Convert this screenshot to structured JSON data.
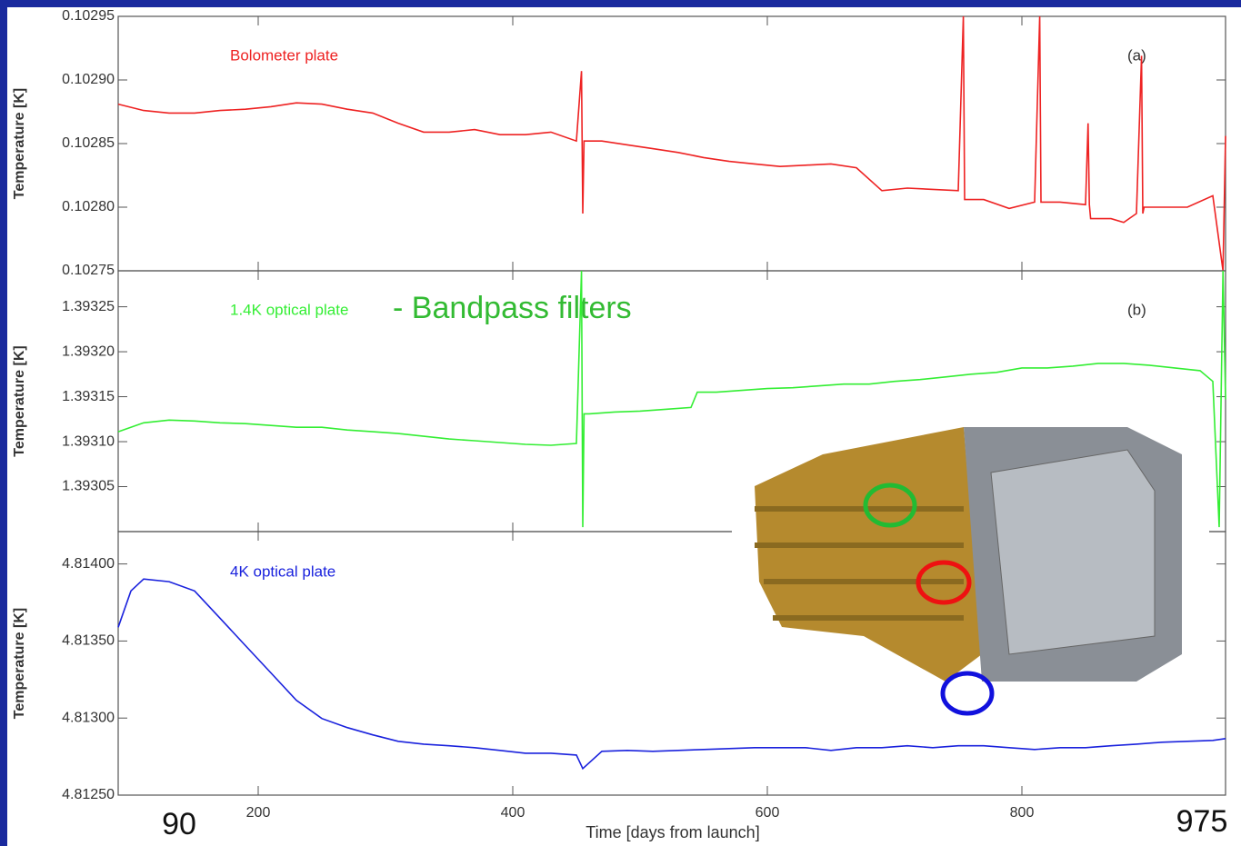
{
  "chart_data": [
    {
      "type": "line",
      "ylabel": "Temperature [K]",
      "panel_label": "(a)",
      "xlim": [
        90,
        960
      ],
      "ylim": [
        0.10275,
        0.10295
      ],
      "yticks": [
        {
          "value": 0.10275,
          "label": "0.10275"
        },
        {
          "value": 0.1028,
          "label": "0.10280"
        },
        {
          "value": 0.10285,
          "label": "0.10285"
        },
        {
          "value": 0.1029,
          "label": "0.10290"
        },
        {
          "value": 0.10295,
          "label": "0.10295"
        }
      ],
      "series": [
        {
          "name": "Bolometer plate",
          "color": "#ee2222",
          "x": [
            90,
            110,
            130,
            150,
            170,
            190,
            210,
            230,
            250,
            270,
            290,
            310,
            330,
            350,
            370,
            390,
            410,
            430,
            450,
            454,
            455,
            456,
            470,
            490,
            510,
            530,
            550,
            570,
            590,
            610,
            630,
            650,
            670,
            690,
            710,
            730,
            750,
            754,
            755,
            756,
            770,
            790,
            810,
            814,
            815,
            816,
            830,
            850,
            852,
            853,
            854,
            870,
            880,
            890,
            894,
            895,
            896,
            910,
            930,
            950,
            958,
            960
          ],
          "values": [
            0.102881,
            0.102876,
            0.102874,
            0.102874,
            0.102876,
            0.102877,
            0.102879,
            0.102882,
            0.102881,
            0.102877,
            0.102874,
            0.102866,
            0.102859,
            0.102859,
            0.102861,
            0.102857,
            0.102857,
            0.102859,
            0.102852,
            0.102907,
            0.102795,
            0.102852,
            0.102852,
            0.102849,
            0.102846,
            0.102843,
            0.102839,
            0.102836,
            0.102834,
            0.102832,
            0.102833,
            0.102834,
            0.102831,
            0.102813,
            0.102815,
            0.102814,
            0.102813,
            0.10295,
            0.102806,
            0.102806,
            0.102806,
            0.102799,
            0.102804,
            0.10295,
            0.102804,
            0.102804,
            0.102804,
            0.102802,
            0.102866,
            0.102802,
            0.102791,
            0.102791,
            0.102788,
            0.102795,
            0.102919,
            0.102795,
            0.1028,
            0.1028,
            0.1028,
            0.102809,
            0.10275,
            0.102856
          ]
        }
      ]
    },
    {
      "type": "line",
      "ylabel": "Temperature [K]",
      "panel_label": "(b)",
      "annotation": "- Bandpass filters",
      "xlim": [
        90,
        960
      ],
      "ylim": [
        1.393,
        1.39329
      ],
      "yticks": [
        {
          "value": 1.39305,
          "label": "1.39305"
        },
        {
          "value": 1.3931,
          "label": "1.39310"
        },
        {
          "value": 1.39315,
          "label": "1.39315"
        },
        {
          "value": 1.3932,
          "label": "1.39320"
        },
        {
          "value": 1.39325,
          "label": "1.39325"
        }
      ],
      "series": [
        {
          "name": "1.4K optical plate",
          "color": "#33ee33",
          "x": [
            90,
            110,
            130,
            150,
            170,
            190,
            210,
            230,
            250,
            270,
            290,
            310,
            330,
            350,
            370,
            390,
            410,
            430,
            450,
            454,
            455,
            456,
            460,
            480,
            500,
            520,
            540,
            545,
            560,
            580,
            600,
            620,
            640,
            660,
            680,
            700,
            720,
            740,
            760,
            780,
            800,
            820,
            840,
            860,
            880,
            900,
            920,
            940,
            950,
            955,
            958,
            960
          ],
          "values": [
            1.393111,
            1.393121,
            1.393124,
            1.393123,
            1.393121,
            1.39312,
            1.393118,
            1.393116,
            1.393116,
            1.393113,
            1.393111,
            1.393109,
            1.393106,
            1.393103,
            1.393101,
            1.393099,
            1.393097,
            1.393096,
            1.393098,
            1.39329,
            1.393005,
            1.393131,
            1.393131,
            1.393133,
            1.393134,
            1.393136,
            1.393138,
            1.393155,
            1.393155,
            1.393157,
            1.393159,
            1.39316,
            1.393162,
            1.393164,
            1.393164,
            1.393167,
            1.393169,
            1.393172,
            1.393175,
            1.393177,
            1.393182,
            1.393182,
            1.393184,
            1.393187,
            1.393187,
            1.393185,
            1.393182,
            1.393179,
            1.393167,
            1.393005,
            1.39329,
            1.393147
          ]
        }
      ]
    },
    {
      "type": "line",
      "ylabel": "Temperature [K]",
      "xlabel": "Time [days from launch]",
      "annotations": [
        "90",
        "975"
      ],
      "xlim": [
        90,
        960
      ],
      "ylim": [
        4.8125,
        4.81421
      ],
      "xticks": [
        200,
        400,
        600,
        800
      ],
      "yticks": [
        {
          "value": 4.8125,
          "label": "4.81250"
        },
        {
          "value": 4.813,
          "label": "4.81300"
        },
        {
          "value": 4.8135,
          "label": "4.81350"
        },
        {
          "value": 4.814,
          "label": "4.81400"
        }
      ],
      "series": [
        {
          "name": "4K optical plate",
          "color": "#1a22dd",
          "x": [
            90,
            100,
            110,
            130,
            150,
            170,
            190,
            210,
            230,
            250,
            270,
            290,
            310,
            330,
            350,
            370,
            390,
            410,
            430,
            450,
            455,
            470,
            490,
            510,
            530,
            550,
            570,
            590,
            610,
            630,
            650,
            670,
            690,
            710,
            730,
            750,
            770,
            790,
            810,
            830,
            850,
            870,
            890,
            910,
            930,
            950,
            960
          ],
          "values": [
            4.813589,
            4.813825,
            4.813902,
            4.813885,
            4.813825,
            4.813648,
            4.81347,
            4.813293,
            4.813115,
            4.812997,
            4.812938,
            4.812891,
            4.812849,
            4.812831,
            4.81282,
            4.812808,
            4.81279,
            4.812772,
            4.812772,
            4.81276,
            4.812672,
            4.812784,
            4.81279,
            4.812784,
            4.81279,
            4.812796,
            4.812802,
            4.812808,
            4.812808,
            4.812808,
            4.81279,
            4.812808,
            4.812808,
            4.81282,
            4.812808,
            4.81282,
            4.81282,
            4.812808,
            4.812796,
            4.812808,
            4.812808,
            4.81282,
            4.812831,
            4.812843,
            4.812849,
            4.812855,
            4.812867
          ]
        }
      ]
    }
  ]
}
